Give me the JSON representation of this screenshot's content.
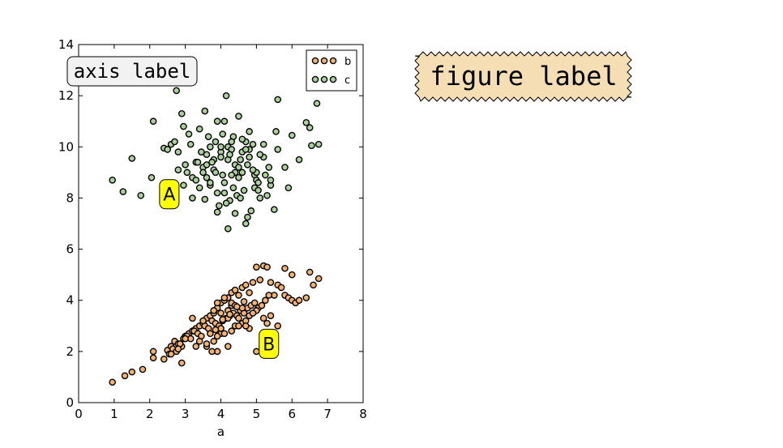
{
  "chart_data": {
    "type": "scatter",
    "xlabel": "a",
    "ylabel": "",
    "xlim": [
      0,
      8
    ],
    "ylim": [
      0,
      14
    ],
    "xticks": [
      "0",
      "1",
      "2",
      "3",
      "4",
      "5",
      "6",
      "7",
      "8"
    ],
    "yticks": [
      "0",
      "2",
      "4",
      "6",
      "8",
      "10",
      "12",
      "14"
    ],
    "grid": false,
    "legend_position": "top-right",
    "series": [
      {
        "name": "b",
        "color": "#f4b26b",
        "edge_color": "#000000",
        "x": [
          0.95,
          1.3,
          1.5,
          1.8,
          2.1,
          2.1,
          2.4,
          2.5,
          2.6,
          2.7,
          2.8,
          2.9,
          2.9,
          3.0,
          3.1,
          3.2,
          3.3,
          3.4,
          3.5,
          3.6,
          3.7,
          3.8,
          3.9,
          4.0,
          4.1,
          4.2,
          4.3,
          4.4,
          4.5,
          4.6,
          4.7,
          4.8,
          4.9,
          5.0,
          5.1,
          5.2,
          5.3,
          5.4,
          5.5,
          5.6,
          5.7,
          5.8,
          5.9,
          6.0,
          6.1,
          6.2,
          6.4,
          6.5,
          6.6,
          6.75,
          2.55,
          2.65,
          2.75,
          2.85,
          2.95,
          3.05,
          3.15,
          3.25,
          3.35,
          3.45,
          3.55,
          3.65,
          3.75,
          3.85,
          3.95,
          4.05,
          4.15,
          4.25,
          4.35,
          4.45,
          4.55,
          4.65,
          4.75,
          4.85,
          4.95,
          5.05,
          5.15,
          5.25,
          5.35,
          3.6,
          3.8,
          4.0,
          4.2,
          4.4,
          4.6,
          4.8,
          5.0,
          3.9,
          4.1,
          4.3,
          4.5,
          4.7,
          4.2,
          4.0,
          3.7,
          3.5,
          4.3,
          4.6,
          4.9,
          5.2,
          5.4,
          5.0,
          4.8,
          4.5,
          4.3,
          3.9,
          3.3,
          3.0,
          2.8,
          2.6,
          4.1,
          4.4,
          4.7,
          3.8,
          3.6,
          4.2,
          4.0,
          3.4,
          3.2,
          3.9,
          5.3,
          5.6,
          5.8,
          6.0,
          4.25,
          4.05,
          3.85,
          4.45,
          4.65,
          3.75
        ],
        "y": [
          0.8,
          1.05,
          1.2,
          1.3,
          1.75,
          2.0,
          1.7,
          2.05,
          2.2,
          2.4,
          2.3,
          1.55,
          2.2,
          2.6,
          2.7,
          2.8,
          2.9,
          3.0,
          3.1,
          3.3,
          3.4,
          3.5,
          3.7,
          3.9,
          4.0,
          4.1,
          4.3,
          4.4,
          4.2,
          4.5,
          4.6,
          4.3,
          4.7,
          5.3,
          4.8,
          5.35,
          5.3,
          4.7,
          4.2,
          4.6,
          4.5,
          4.2,
          4.1,
          4.0,
          3.9,
          4.0,
          4.1,
          5.1,
          4.6,
          4.85,
          1.9,
          2.1,
          2.0,
          2.3,
          2.5,
          2.6,
          2.5,
          2.8,
          2.7,
          2.6,
          3.0,
          2.9,
          3.2,
          3.1,
          3.0,
          3.2,
          3.3,
          3.4,
          3.5,
          3.4,
          3.6,
          3.5,
          3.7,
          3.8,
          3.9,
          3.7,
          3.8,
          4.0,
          4.2,
          2.2,
          2.4,
          2.7,
          2.2,
          3.0,
          3.1,
          3.4,
          3.6,
          3.9,
          4.1,
          3.8,
          3.3,
          3.2,
          3.6,
          2.9,
          2.7,
          3.2,
          3.9,
          3.7,
          3.5,
          3.3,
          3.4,
          2.0,
          2.9,
          3.0,
          2.8,
          2.6,
          2.2,
          2.5,
          2.1,
          1.9,
          2.7,
          3.8,
          3.0,
          3.6,
          2.3,
          3.3,
          3.5,
          2.4,
          3.3,
          2.0,
          3.1,
          3.0,
          5.25,
          5.0,
          3.45,
          3.25,
          2.85,
          3.75,
          3.95,
          2.0
        ]
      },
      {
        "name": "c",
        "color": "#aad39a",
        "edge_color": "#000000",
        "x": [
          0.95,
          1.25,
          1.5,
          1.75,
          2.05,
          2.1,
          2.4,
          2.5,
          2.6,
          2.7,
          2.75,
          2.8,
          2.9,
          2.95,
          3.05,
          3.1,
          3.2,
          3.3,
          3.4,
          3.5,
          3.55,
          3.6,
          3.7,
          3.8,
          3.85,
          3.9,
          4.0,
          4.05,
          4.1,
          4.15,
          4.2,
          4.3,
          4.35,
          4.4,
          4.5,
          4.55,
          4.6,
          4.7,
          4.75,
          4.8,
          4.9,
          4.95,
          5.0,
          5.1,
          5.2,
          5.3,
          5.4,
          5.5,
          5.6,
          5.8,
          5.9,
          6.0,
          6.2,
          6.4,
          6.5,
          6.55,
          6.7,
          6.75,
          2.8,
          3.0,
          3.2,
          3.4,
          3.6,
          3.8,
          4.0,
          4.2,
          4.4,
          4.6,
          4.8,
          5.0,
          5.2,
          3.9,
          4.1,
          4.3,
          4.5,
          4.7,
          3.7,
          3.5,
          3.3,
          4.25,
          4.45,
          4.65,
          4.85,
          5.05,
          3.95,
          4.15,
          4.35,
          4.55,
          3.75,
          3.85,
          4.05,
          4.6,
          4.8,
          5.1,
          4.0,
          4.3,
          3.6,
          5.4,
          5.6,
          2.95,
          3.15,
          3.45,
          3.65,
          4.9,
          5.25,
          4.2,
          4.4,
          3.9,
          4.7,
          4.95,
          5.55,
          3.35,
          4.1,
          4.5,
          3.7,
          4.25,
          4.75,
          5.05,
          5.35,
          3.55
        ],
        "y": [
          8.7,
          8.25,
          9.55,
          8.1,
          8.8,
          11.0,
          9.95,
          9.9,
          10.1,
          10.2,
          12.2,
          9.8,
          11.3,
          8.5,
          9.0,
          10.5,
          8.8,
          9.4,
          10.7,
          9.2,
          11.4,
          9.7,
          10.0,
          9.5,
          10.2,
          11.0,
          9.8,
          10.5,
          11.0,
          12.0,
          10.0,
          9.9,
          10.4,
          9.0,
          11.2,
          9.5,
          9.8,
          10.2,
          7.25,
          9.6,
          10.1,
          8.9,
          9.0,
          8.0,
          10.1,
          8.1,
          8.5,
          7.55,
          11.85,
          9.2,
          8.4,
          10.45,
          9.5,
          10.95,
          10.75,
          10.05,
          11.7,
          10.1,
          9.1,
          9.3,
          8.0,
          8.4,
          8.8,
          9.1,
          9.6,
          9.5,
          9.3,
          9.0,
          9.9,
          8.7,
          9.6,
          8.2,
          8.6,
          8.9,
          9.2,
          9.9,
          8.5,
          9.0,
          8.7,
          7.9,
          8.1,
          8.3,
          7.5,
          8.6,
          7.7,
          7.8,
          8.4,
          8.0,
          9.4,
          9.0,
          8.9,
          10.3,
          10.6,
          9.7,
          10.0,
          10.2,
          9.3,
          8.7,
          9.9,
          10.8,
          10.1,
          9.8,
          10.4,
          9.1,
          8.9,
          6.8,
          7.4,
          7.45,
          7.0,
          8.4,
          10.6,
          9.4,
          8.2,
          8.8,
          8.6,
          9.7,
          9.3,
          8.3,
          9.2,
          7.95
        ]
      }
    ],
    "annotations": [
      {
        "text": "A",
        "x": 2.55,
        "y": 8.15,
        "box": "round",
        "color": "#ffff00"
      },
      {
        "text": "B",
        "x": 5.35,
        "y": 2.3,
        "box": "round",
        "color": "#ffff00"
      }
    ]
  },
  "axis_label_box": {
    "text": "axis label",
    "box": "round",
    "color": "#f2f2f2"
  },
  "figure_label_box": {
    "text": "figure label",
    "box": "sawtooth",
    "color": "#f5deb3"
  }
}
